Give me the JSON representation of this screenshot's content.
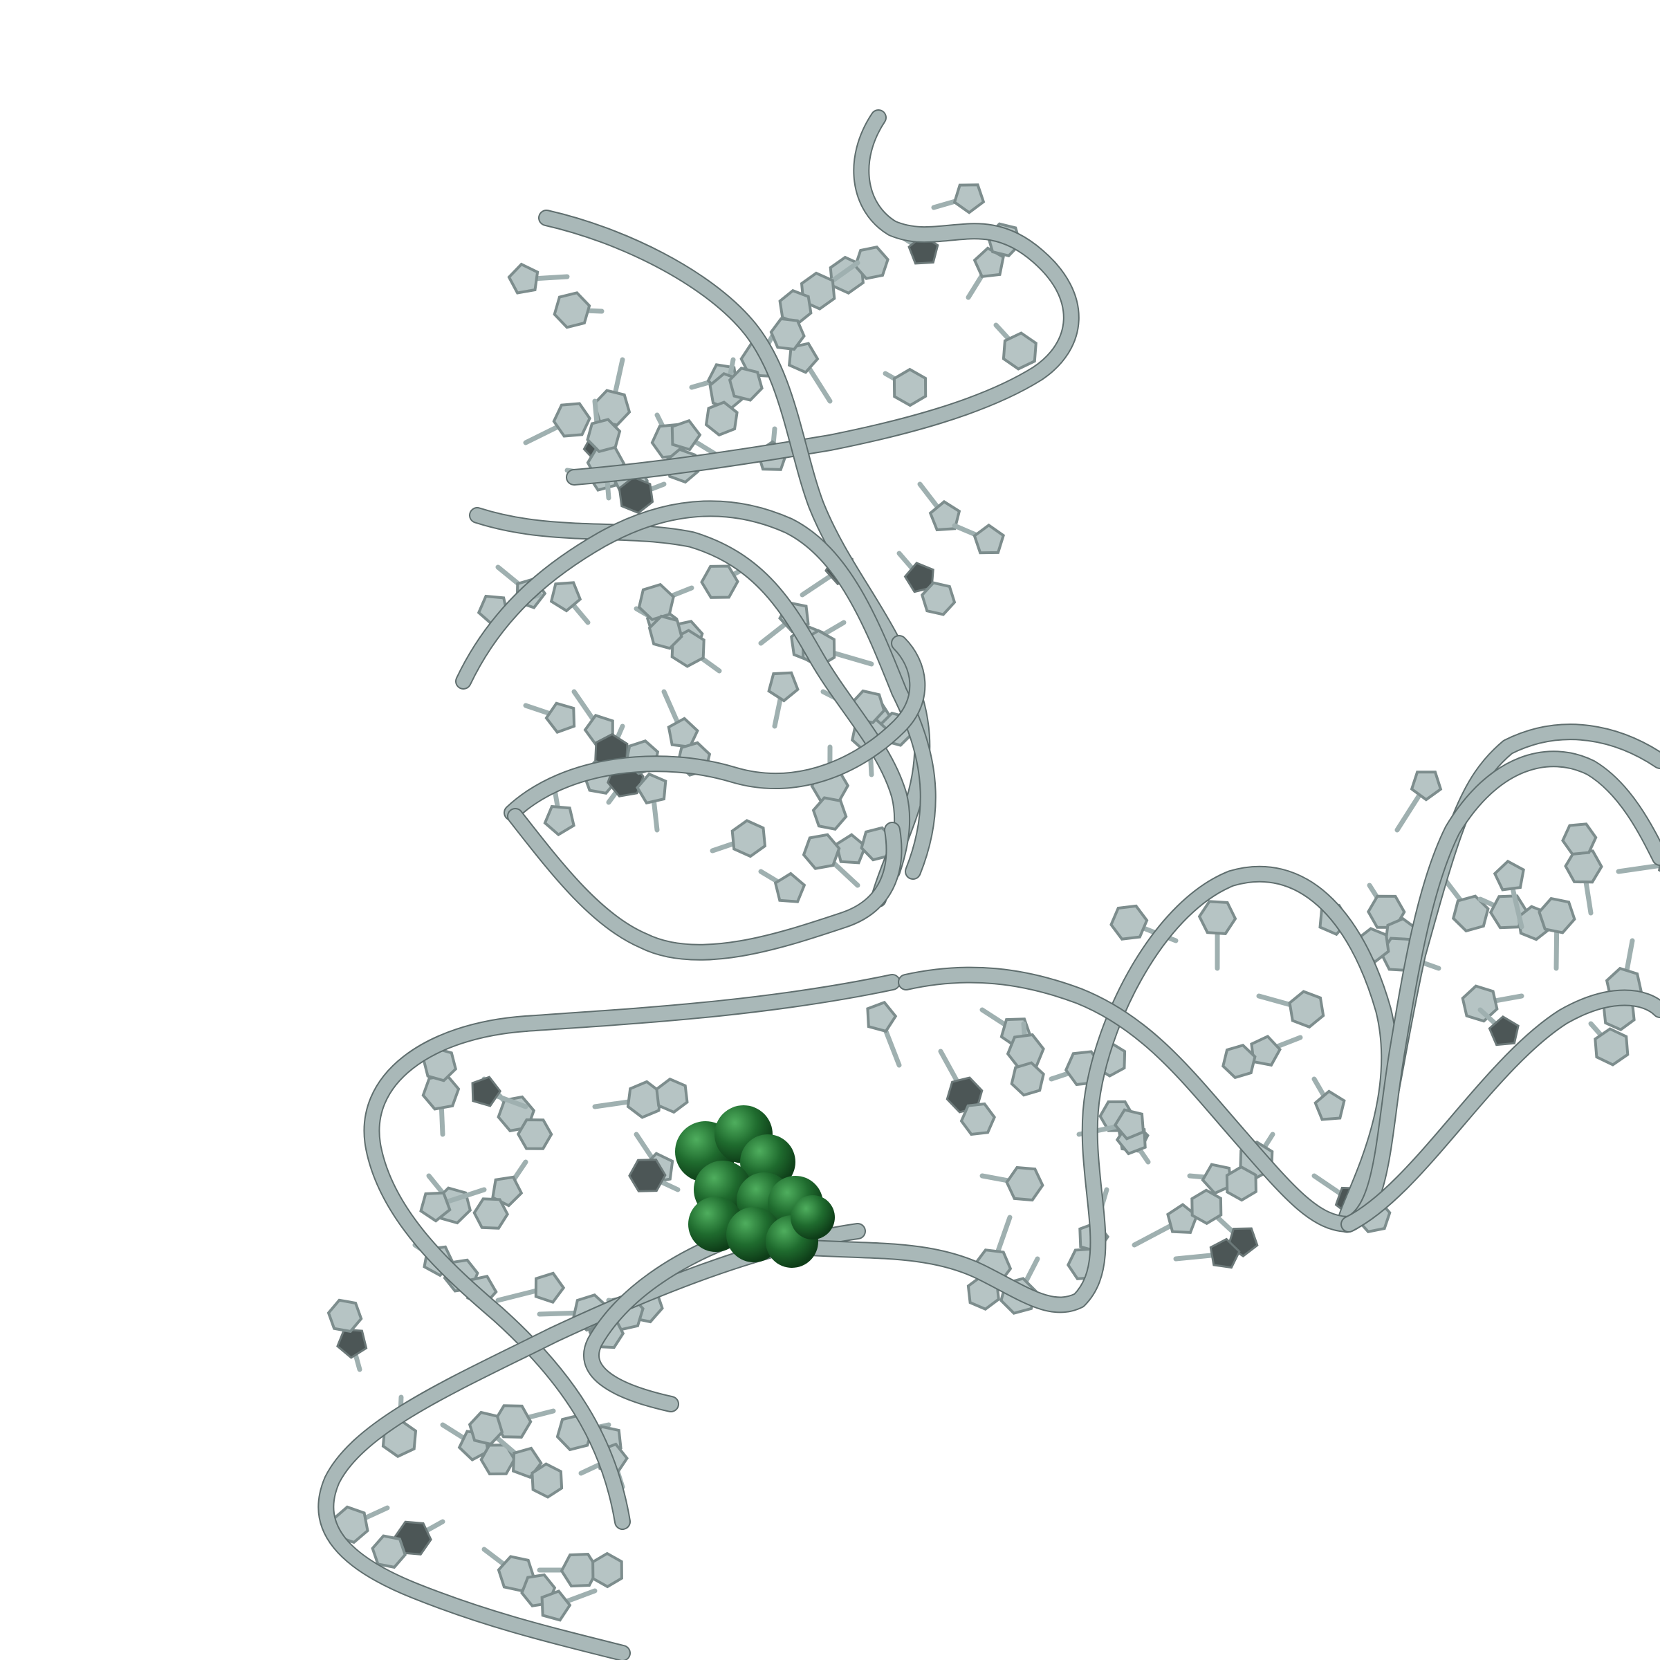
{
  "scene": {
    "background": "#ffffff",
    "structure_color": "#a9b8b8",
    "outline_color": "#5f6e6e",
    "ligand_color": "#1f6b2e",
    "ligand_highlight": "#3f9a4f"
  }
}
